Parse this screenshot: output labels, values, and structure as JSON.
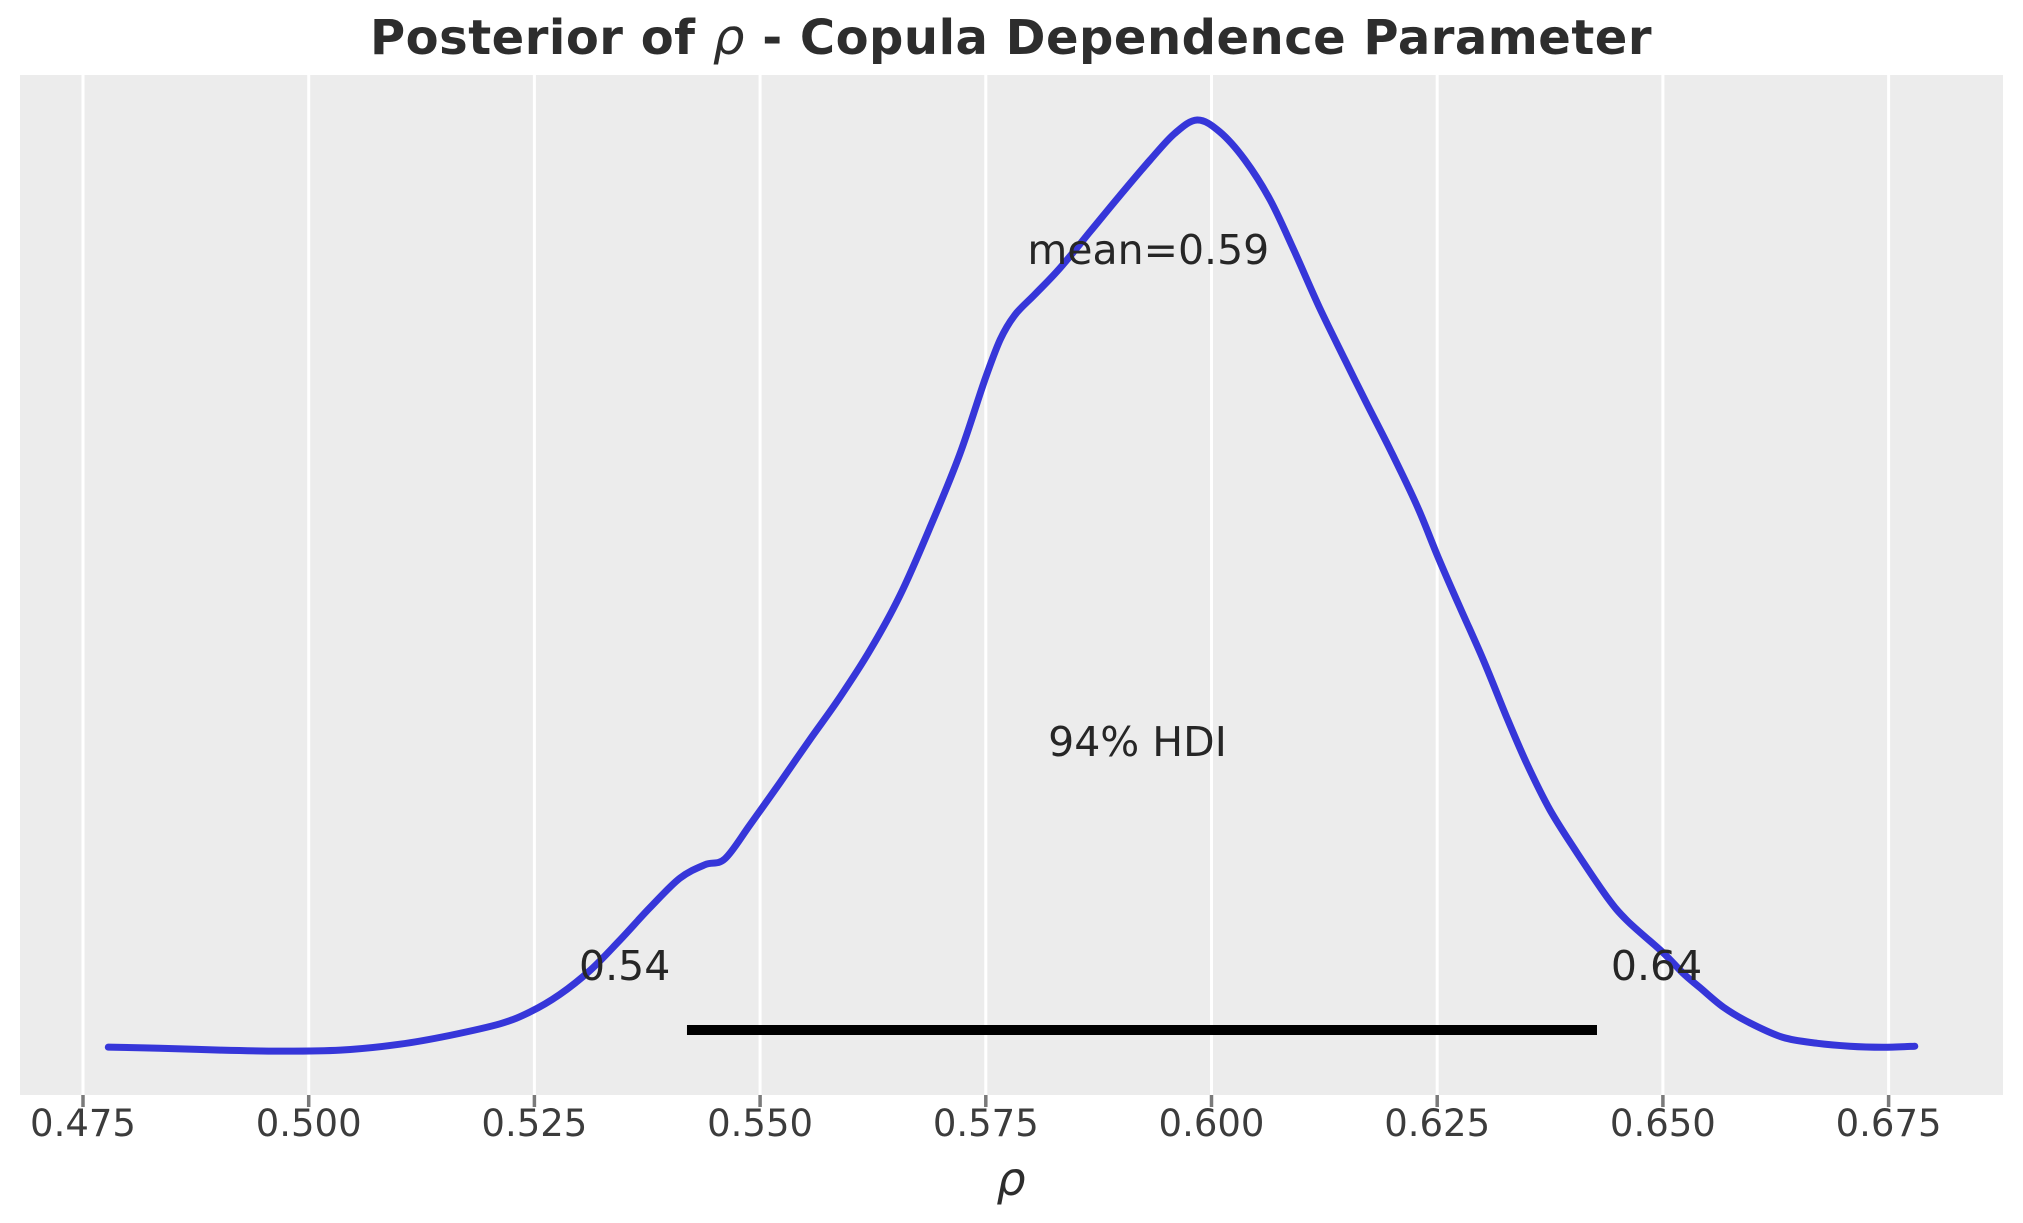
{
  "figure": {
    "title": {
      "prefix": "Posterior of ",
      "symbol": "ρ",
      "suffix": " - Copula Dependence Parameter"
    },
    "xlabel": "ρ"
  },
  "colors": {
    "plot_bg": "#ececec",
    "gridline": "#ffffff",
    "curve": "#3636d9",
    "hdi_bar": "#000000",
    "tick_mark": "#7a7a7a",
    "text": "#262626"
  },
  "chart_data": {
    "type": "line",
    "title": "Posterior of ρ - Copula Dependence Parameter",
    "xlabel": "ρ",
    "ylabel": "",
    "legend": "none",
    "grid": "vertical white gridlines on gray panel",
    "xlim": [
      0.468,
      0.688
    ],
    "x_tick_labels": [
      "0.475",
      "0.500",
      "0.525",
      "0.550",
      "0.575",
      "0.600",
      "0.625",
      "0.650",
      "0.675"
    ],
    "x_tick_values": [
      0.475,
      0.5,
      0.525,
      0.55,
      0.575,
      0.6,
      0.625,
      0.65,
      0.675
    ],
    "mean": {
      "label": "mean=0.59",
      "value": 0.59,
      "pos": [
        0.593,
        0.866
      ]
    },
    "hdi": {
      "interval": "94%",
      "label": "94% HDI",
      "lower": 0.54,
      "upper": 0.64,
      "lower_label": "0.54",
      "upper_label": "0.64",
      "bar_x": [
        0.5419,
        0.6427
      ],
      "bar_y_frac": 0.0666,
      "text_pos": [
        0.5918,
        0.362
      ],
      "lower_label_pos": [
        0.535,
        0.132
      ],
      "upper_label_pos": [
        0.6493,
        0.132
      ]
    },
    "curve": {
      "name": "posterior-kde",
      "description": "KDE of posterior samples of rho; y = density normalized to peak = 1",
      "points": [
        [
          0.4778,
          0.049
        ],
        [
          0.4835,
          0.048
        ],
        [
          0.4902,
          0.046
        ],
        [
          0.4968,
          0.045
        ],
        [
          0.5035,
          0.046
        ],
        [
          0.5101,
          0.052
        ],
        [
          0.5156,
          0.061
        ],
        [
          0.5212,
          0.073
        ],
        [
          0.5245,
          0.085
        ],
        [
          0.5278,
          0.103
        ],
        [
          0.5312,
          0.128
        ],
        [
          0.5345,
          0.159
        ],
        [
          0.5378,
          0.192
        ],
        [
          0.5411,
          0.222
        ],
        [
          0.5439,
          0.236
        ],
        [
          0.5461,
          0.242
        ],
        [
          0.5489,
          0.277
        ],
        [
          0.5522,
          0.32
        ],
        [
          0.5555,
          0.364
        ],
        [
          0.5588,
          0.407
        ],
        [
          0.5622,
          0.456
        ],
        [
          0.5655,
          0.512
        ],
        [
          0.5688,
          0.581
        ],
        [
          0.5721,
          0.656
        ],
        [
          0.5749,
          0.733
        ],
        [
          0.5766,
          0.774
        ],
        [
          0.5782,
          0.799
        ],
        [
          0.5804,
          0.82
        ],
        [
          0.5832,
          0.847
        ],
        [
          0.5865,
          0.884
        ],
        [
          0.5898,
          0.921
        ],
        [
          0.5932,
          0.958
        ],
        [
          0.5959,
          0.985
        ],
        [
          0.5984,
          0.999
        ],
        [
          0.6009,
          0.987
        ],
        [
          0.6037,
          0.958
        ],
        [
          0.6065,
          0.917
        ],
        [
          0.6092,
          0.864
        ],
        [
          0.612,
          0.806
        ],
        [
          0.6148,
          0.753
        ],
        [
          0.617,
          0.712
        ],
        [
          0.6198,
          0.661
        ],
        [
          0.6228,
          0.603
        ],
        [
          0.6251,
          0.551
        ],
        [
          0.6275,
          0.5
        ],
        [
          0.6301,
          0.446
        ],
        [
          0.6327,
          0.387
        ],
        [
          0.6349,
          0.34
        ],
        [
          0.6375,
          0.292
        ],
        [
          0.6405,
          0.248
        ],
        [
          0.6438,
          0.203
        ],
        [
          0.646,
          0.179
        ],
        [
          0.65,
          0.146
        ],
        [
          0.6522,
          0.125
        ],
        [
          0.6541,
          0.11
        ],
        [
          0.6567,
          0.09
        ],
        [
          0.6596,
          0.074
        ],
        [
          0.6633,
          0.059
        ],
        [
          0.6671,
          0.053
        ],
        [
          0.6707,
          0.05
        ],
        [
          0.6744,
          0.049
        ],
        [
          0.6779,
          0.05
        ]
      ]
    }
  }
}
